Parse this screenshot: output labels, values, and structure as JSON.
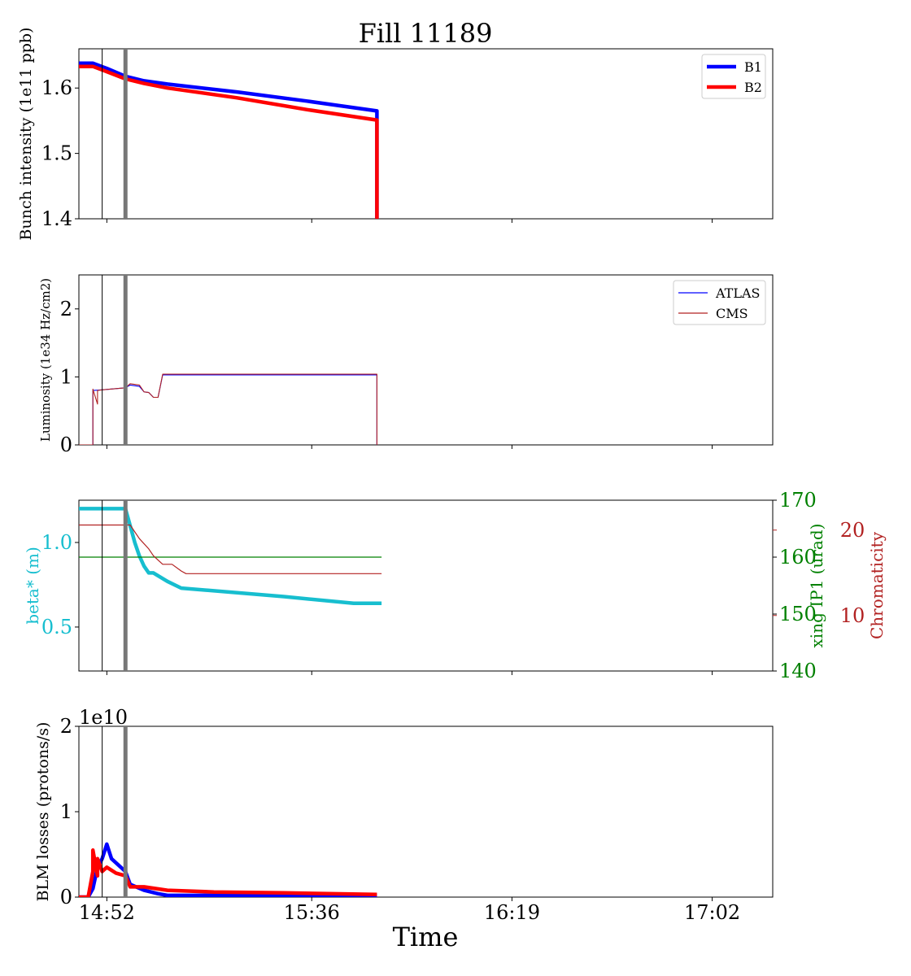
{
  "figure": {
    "title": "Fill 11189",
    "xlabel": "Time",
    "x_ticks": [
      "14:52",
      "15:36",
      "16:19",
      "17:02"
    ],
    "markers": [
      "14:51",
      "14:56"
    ]
  },
  "colors": {
    "blue": "#0000ff",
    "red": "#ff0000",
    "teal": "#17becf",
    "green": "#008000",
    "darkred": "#b22222",
    "marker_gray": "#777777"
  },
  "chart_data": [
    {
      "type": "line",
      "ylabel": "Bunch intensity (1e11 ppb)",
      "ylim": [
        1.4,
        1.66
      ],
      "yticks": [
        "1.4",
        "1.5",
        "1.6"
      ],
      "legend": {
        "placement": "top-right",
        "entries": [
          "B1",
          "B2"
        ]
      },
      "series": [
        {
          "name": "B1",
          "x": [
            "14:46",
            "14:49",
            "14:52",
            "14:56",
            "15:00",
            "15:05",
            "15:20",
            "15:35",
            "15:50",
            "15:50",
            "15:50"
          ],
          "y": [
            1.638,
            1.638,
            1.63,
            1.618,
            1.611,
            1.606,
            1.594,
            1.58,
            1.565,
            1.545,
            1.4
          ]
        },
        {
          "name": "B2",
          "x": [
            "14:46",
            "14:49",
            "14:52",
            "14:56",
            "15:00",
            "15:05",
            "15:20",
            "15:35",
            "15:50",
            "15:50"
          ],
          "y": [
            1.633,
            1.633,
            1.625,
            1.614,
            1.607,
            1.6,
            1.585,
            1.567,
            1.551,
            1.4
          ]
        }
      ]
    },
    {
      "type": "line",
      "ylabel": "Luminosity (1e34 Hz/cm2)",
      "ylim": [
        0,
        2.5
      ],
      "yticks": [
        "0",
        "1",
        "2"
      ],
      "legend": {
        "placement": "top-right",
        "entries": [
          "ATLAS",
          "CMS"
        ]
      },
      "series": [
        {
          "name": "ATLAS",
          "x": [
            "14:46",
            "14:49",
            "14:49",
            "14:51",
            "14:56",
            "14:57",
            "14:59",
            "15:00",
            "15:01",
            "15:02",
            "15:03",
            "15:04",
            "15:30",
            "15:50",
            "15:50"
          ],
          "y": [
            0,
            0,
            0.8,
            0.81,
            0.84,
            0.88,
            0.86,
            0.78,
            0.77,
            0.7,
            0.7,
            1.03,
            1.03,
            1.03,
            0
          ]
        },
        {
          "name": "CMS",
          "x": [
            "14:46",
            "14:49",
            "14:49",
            "14:50",
            "14:50",
            "14:51",
            "14:56",
            "14:57",
            "14:59",
            "15:00",
            "15:01",
            "15:02",
            "15:03",
            "15:04",
            "15:30",
            "15:50",
            "15:50"
          ],
          "y": [
            0,
            0,
            0.82,
            0.6,
            0.8,
            0.81,
            0.84,
            0.9,
            0.88,
            0.78,
            0.77,
            0.7,
            0.7,
            1.04,
            1.04,
            1.04,
            0
          ]
        }
      ]
    },
    {
      "type": "line",
      "ylabel": "beta* (m)",
      "ylabel_right": "xing IP1 (urad)",
      "ylabel_right2": "Chromaticity",
      "ylim": [
        0.24,
        1.25
      ],
      "yticks": [
        "0.5",
        "1.0"
      ],
      "ylim_right": [
        140,
        170
      ],
      "yticks_right": [
        "140",
        "150",
        "160",
        "170"
      ],
      "ylim_right2": [
        3.5,
        23.5
      ],
      "yticks_right2": [
        "10",
        "20"
      ],
      "series": [
        {
          "name": "beta*",
          "axis": "left",
          "x": [
            "14:46",
            "14:56",
            "14:57",
            "14:58",
            "14:59",
            "15:00",
            "15:01",
            "15:02",
            "15:05",
            "15:08",
            "15:30",
            "15:45",
            "15:51"
          ],
          "y": [
            1.2,
            1.2,
            1.1,
            1.0,
            0.92,
            0.86,
            0.82,
            0.82,
            0.77,
            0.73,
            0.68,
            0.64,
            0.64
          ]
        },
        {
          "x": [
            "14:46",
            "15:51"
          ],
          "y": [
            160,
            160
          ]
        },
        {
          "x": [
            "14:46",
            "14:57",
            "14:59",
            "15:01",
            "15:02",
            "15:04",
            "15:06",
            "15:08",
            "15:09",
            "15:51"
          ],
          "y": [
            20.6,
            20.6,
            19.0,
            17.8,
            17.0,
            16.0,
            16.0,
            15.2,
            14.9,
            14.9
          ]
        }
      ]
    },
    {
      "type": "line",
      "ylabel": "BLM losses (protons/s)",
      "offset_text": "1e10",
      "ylim": [
        0,
        2
      ],
      "yticks": [
        "0",
        "1",
        "2"
      ],
      "series": [
        {
          "x": [
            "14:46",
            "14:48",
            "14:49",
            "14:50",
            "14:51",
            "14:52",
            "14:53",
            "14:56",
            "14:57",
            "15:00",
            "15:03",
            "15:05",
            "15:20",
            "15:50"
          ],
          "y": [
            0,
            0,
            0.1,
            0.35,
            0.45,
            0.62,
            0.45,
            0.3,
            0.15,
            0.08,
            0.04,
            0.02,
            0.02,
            0.02
          ]
        },
        {
          "x": [
            "14:46",
            "14:48",
            "14:49",
            "14:49",
            "14:50",
            "14:50",
            "14:51",
            "14:52",
            "14:54",
            "14:56",
            "14:57",
            "15:00",
            "15:05",
            "15:15",
            "15:30",
            "15:50"
          ],
          "y": [
            0,
            0,
            0.3,
            0.55,
            0.25,
            0.45,
            0.3,
            0.35,
            0.28,
            0.25,
            0.12,
            0.12,
            0.08,
            0.06,
            0.05,
            0.03
          ]
        }
      ]
    }
  ]
}
